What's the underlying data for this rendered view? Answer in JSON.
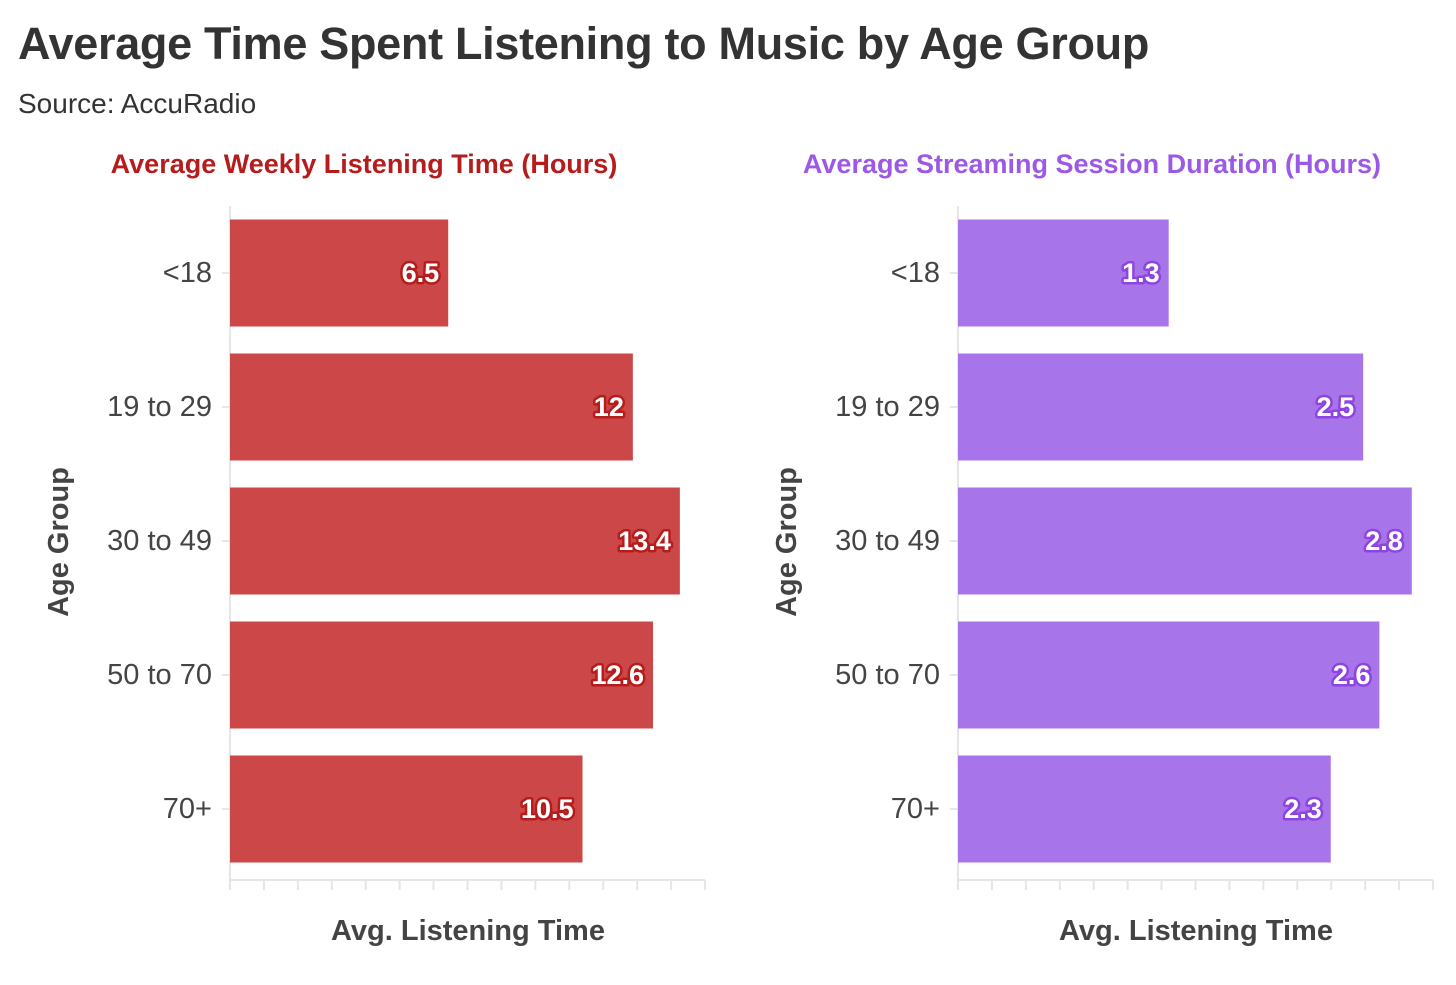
{
  "title": "Average Time Spent Listening to Music by Age Group",
  "subtitle": "Source: AccuRadio",
  "colors": {
    "left_bar": "#cc4747",
    "left_title": "#b71c1c",
    "left_label_outline": "#b71c1c",
    "right_bar": "#a874e9",
    "right_title": "#9b59e6",
    "right_label_outline": "#8e44e0",
    "axis": "#e6e6e6",
    "text": "#333333"
  },
  "chart_data": [
    {
      "type": "bar",
      "orientation": "horizontal",
      "title": "Average Weekly Listening Time (Hours)",
      "xlabel": "Avg. Listening Time",
      "ylabel": "Age Group",
      "categories": [
        "<18",
        "19 to 29",
        "30 to 49",
        "50 to 70",
        "70+"
      ],
      "values": [
        6.5,
        12,
        13.4,
        12.6,
        10.5
      ],
      "value_labels": [
        "6.5",
        "12",
        "13.4",
        "12.6",
        "10.5"
      ],
      "xlim": [
        0,
        14
      ],
      "x_ticks_minor": 14,
      "grid": false
    },
    {
      "type": "bar",
      "orientation": "horizontal",
      "title": "Average Streaming Session Duration (Hours)",
      "xlabel": "Avg. Listening Time",
      "ylabel": "Age Group",
      "categories": [
        "<18",
        "19 to 29",
        "30 to 49",
        "50 to 70",
        "70+"
      ],
      "values": [
        1.3,
        2.5,
        2.8,
        2.6,
        2.3
      ],
      "value_labels": [
        "1.3",
        "2.5",
        "2.8",
        "2.6",
        "2.3"
      ],
      "xlim": [
        0,
        2.9
      ],
      "x_ticks_minor": 14,
      "grid": false
    }
  ]
}
